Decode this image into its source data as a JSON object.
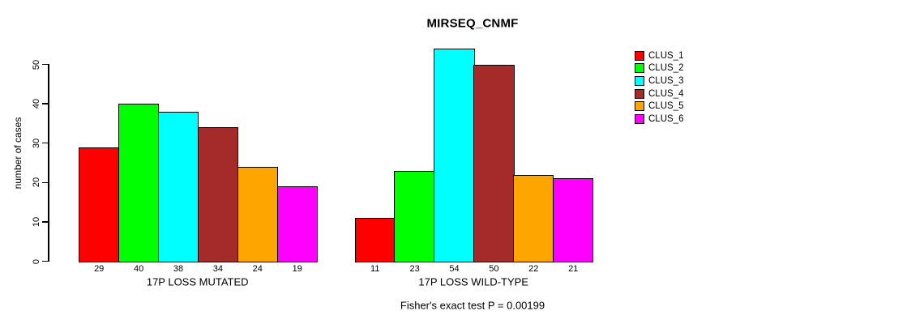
{
  "chart_data": {
    "type": "bar",
    "title": "MIRSEQ_CNMF",
    "ylabel": "number of cases",
    "xlabel": "",
    "yticks": [
      0,
      10,
      20,
      30,
      40,
      50
    ],
    "ylim": [
      0,
      55
    ],
    "grid": false,
    "legend_position": "right",
    "categories": [
      "17P LOSS MUTATED",
      "17P LOSS WILD-TYPE"
    ],
    "series": [
      {
        "name": "CLUS_1",
        "color": "#FF0000",
        "values": [
          29,
          11
        ]
      },
      {
        "name": "CLUS_2",
        "color": "#00FF00",
        "values": [
          40,
          23
        ]
      },
      {
        "name": "CLUS_3",
        "color": "#00FFFF",
        "values": [
          38,
          54
        ]
      },
      {
        "name": "CLUS_4",
        "color": "#A52A2A",
        "values": [
          34,
          50
        ]
      },
      {
        "name": "CLUS_5",
        "color": "#FFA500",
        "values": [
          24,
          22
        ]
      },
      {
        "name": "CLUS_6",
        "color": "#FF00FF",
        "values": [
          19,
          21
        ]
      }
    ],
    "bar_value_labels": true,
    "annotation": "Fisher's exact test P = 0.00199"
  },
  "colors": {
    "background": "#FFFFFF",
    "axis": "#000000",
    "text": "#000000"
  }
}
